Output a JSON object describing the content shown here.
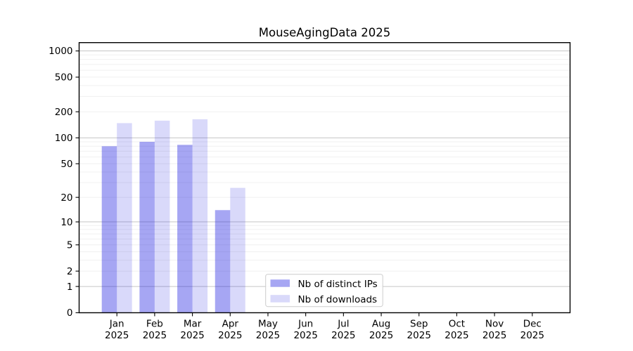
{
  "chart_data": {
    "type": "bar",
    "title": "MouseAgingData 2025",
    "categories": [
      "Jan",
      "Feb",
      "Mar",
      "Apr",
      "May",
      "Jun",
      "Jul",
      "Aug",
      "Sep",
      "Oct",
      "Nov",
      "Dec"
    ],
    "year_label": "2025",
    "series": [
      {
        "name": "Nb of distinct IPs",
        "key": "distinct-ips",
        "color": "#0000dd",
        "fill_opacity": 0.35,
        "values": [
          80,
          90,
          83,
          14,
          null,
          null,
          null,
          null,
          null,
          null,
          null,
          null
        ]
      },
      {
        "name": "Nb of downloads",
        "key": "downloads",
        "color": "#0000dd",
        "fill_opacity": 0.15,
        "values": [
          148,
          158,
          164,
          26,
          null,
          null,
          null,
          null,
          null,
          null,
          null,
          null
        ]
      }
    ],
    "y_axis": {
      "scale": "log1p",
      "ticks": [
        0,
        1,
        2,
        5,
        10,
        20,
        50,
        100,
        200,
        500,
        1000
      ],
      "max_visible": 1240
    },
    "grid": {
      "major": true,
      "minor": true
    },
    "legend": {
      "location": "inside-lower-center-left"
    }
  },
  "colors": {
    "background": "#ffffff",
    "axis": "#000000",
    "major_grid": "#c6c6c6",
    "minor_grid": "#f0f0f0",
    "legend_border": "#cccccc",
    "text": "#000000"
  }
}
